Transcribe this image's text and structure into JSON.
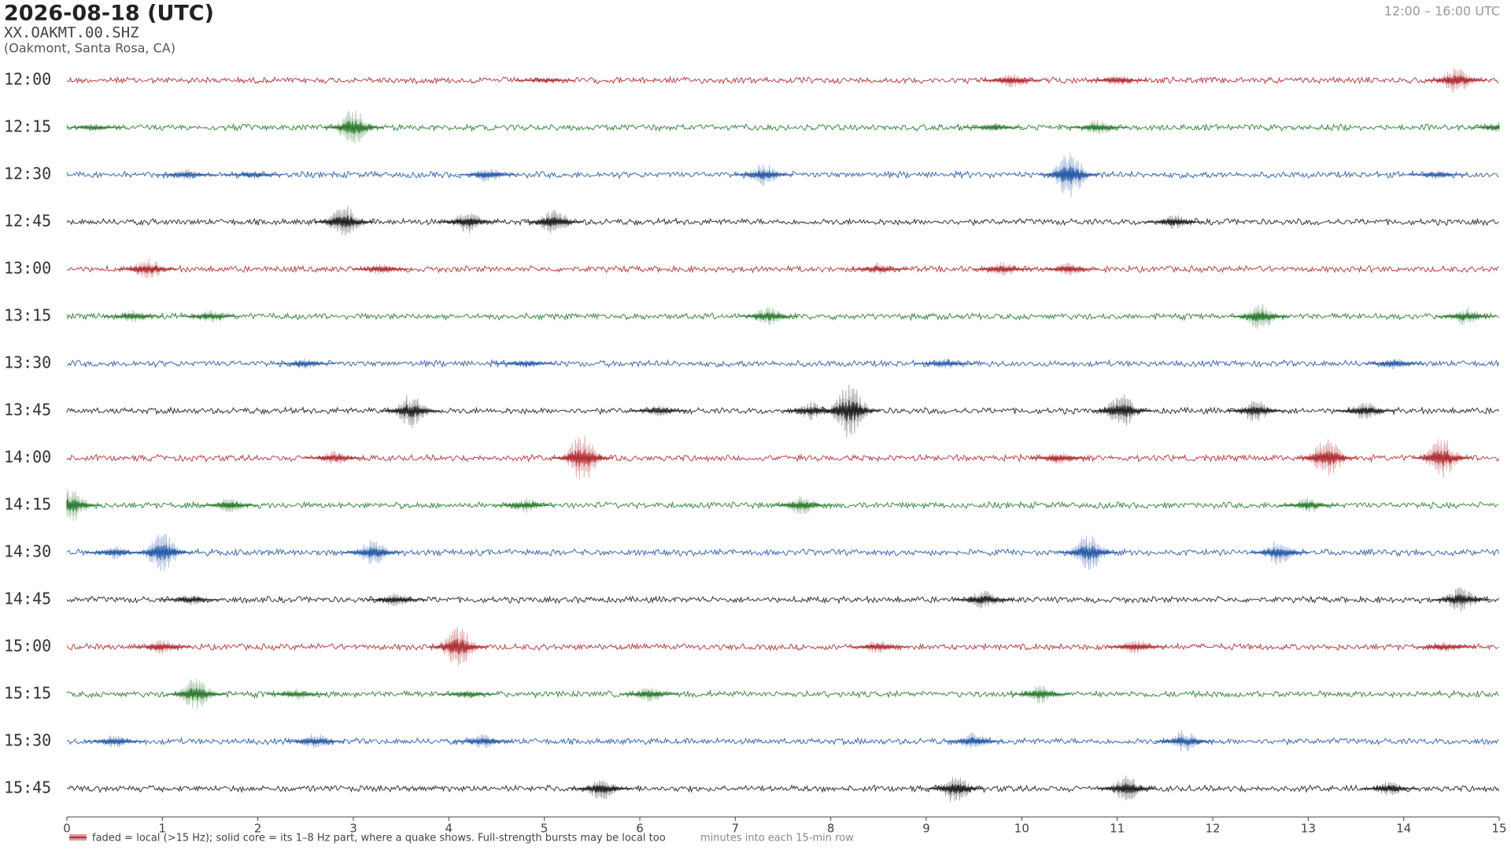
{
  "chart_data": {
    "type": "helicorder",
    "title": "2026-08-18  (UTC)",
    "station": "XX.OAKMT.00.SHZ",
    "location": "(Oakmont, Santa Rosa, CA)",
    "time_range": "12:00 – 16:00 UTC",
    "note": "faded = local (>15 Hz); solid core = its 1–8 Hz part, where a quake shows. Full-strength bursts may be local too",
    "x_label": "minutes into each 15-min row",
    "xlim": [
      0,
      15
    ],
    "xticks": [
      0,
      1,
      2,
      3,
      4,
      5,
      6,
      7,
      8,
      9,
      10,
      11,
      12,
      13,
      14,
      15
    ],
    "series": [
      {
        "name": "12:00",
        "color": "#b03035",
        "bursts": [
          [
            9.9,
            8
          ],
          [
            11,
            6
          ],
          [
            14.55,
            14
          ],
          [
            5,
            3
          ]
        ]
      },
      {
        "name": "12:15",
        "color": "#2e7d32",
        "bursts": [
          [
            3.0,
            20
          ],
          [
            0.3,
            4
          ],
          [
            10.8,
            8
          ],
          [
            9.7,
            5
          ],
          [
            15,
            6
          ]
        ]
      },
      {
        "name": "12:30",
        "color": "#2a5ca8",
        "bursts": [
          [
            1.25,
            6
          ],
          [
            4.4,
            8
          ],
          [
            7.3,
            12
          ],
          [
            10.5,
            24
          ],
          [
            1.95,
            5
          ],
          [
            14.35,
            5
          ]
        ]
      },
      {
        "name": "12:45",
        "color": "#222222",
        "bursts": [
          [
            2.9,
            18
          ],
          [
            5.1,
            14
          ],
          [
            4.2,
            12
          ],
          [
            11.6,
            8
          ]
        ]
      },
      {
        "name": "13:00",
        "color": "#b03035",
        "bursts": [
          [
            0.85,
            12
          ],
          [
            3.3,
            6
          ],
          [
            8.5,
            7
          ],
          [
            9.8,
            8
          ],
          [
            10.5,
            7
          ]
        ]
      },
      {
        "name": "13:15",
        "color": "#2e7d32",
        "bursts": [
          [
            0.7,
            7
          ],
          [
            1.5,
            7
          ],
          [
            7.35,
            10
          ],
          [
            12.5,
            14
          ],
          [
            14.65,
            10
          ]
        ]
      },
      {
        "name": "13:30",
        "color": "#2a5ca8",
        "bursts": [
          [
            2.5,
            6
          ],
          [
            4.8,
            5
          ],
          [
            9.2,
            6
          ],
          [
            13.9,
            6
          ]
        ]
      },
      {
        "name": "13:45",
        "color": "#222222",
        "bursts": [
          [
            3.6,
            18
          ],
          [
            8.2,
            30
          ],
          [
            7.8,
            10
          ],
          [
            11.05,
            18
          ],
          [
            12.45,
            12
          ],
          [
            13.6,
            10
          ],
          [
            6.2,
            6
          ]
        ]
      },
      {
        "name": "14:00",
        "color": "#b03035",
        "bursts": [
          [
            5.4,
            26
          ],
          [
            2.8,
            8
          ],
          [
            10.4,
            8
          ],
          [
            13.2,
            22
          ],
          [
            14.4,
            22
          ]
        ]
      },
      {
        "name": "14:15",
        "color": "#2e7d32",
        "bursts": [
          [
            0.05,
            18
          ],
          [
            1.7,
            8
          ],
          [
            4.8,
            8
          ],
          [
            7.7,
            10
          ],
          [
            13.0,
            8
          ]
        ]
      },
      {
        "name": "14:30",
        "color": "#2a5ca8",
        "bursts": [
          [
            1.0,
            22
          ],
          [
            3.2,
            14
          ],
          [
            10.7,
            20
          ],
          [
            12.7,
            14
          ],
          [
            0.5,
            7
          ]
        ]
      },
      {
        "name": "14:45",
        "color": "#222222",
        "bursts": [
          [
            3.45,
            8
          ],
          [
            9.6,
            10
          ],
          [
            14.6,
            14
          ],
          [
            1.3,
            6
          ]
        ]
      },
      {
        "name": "15:00",
        "color": "#b03035",
        "bursts": [
          [
            4.1,
            22
          ],
          [
            1.0,
            8
          ],
          [
            8.5,
            8
          ],
          [
            11.2,
            8
          ],
          [
            14.45,
            6
          ]
        ]
      },
      {
        "name": "15:15",
        "color": "#2e7d32",
        "bursts": [
          [
            1.35,
            18
          ],
          [
            2.4,
            6
          ],
          [
            6.1,
            8
          ],
          [
            10.2,
            10
          ],
          [
            4.2,
            5
          ]
        ]
      },
      {
        "name": "15:30",
        "color": "#2a5ca8",
        "bursts": [
          [
            0.5,
            7
          ],
          [
            2.6,
            9
          ],
          [
            4.35,
            8
          ],
          [
            9.5,
            10
          ],
          [
            11.7,
            12
          ]
        ]
      },
      {
        "name": "15:45",
        "color": "#222222",
        "bursts": [
          [
            5.6,
            12
          ],
          [
            9.3,
            16
          ],
          [
            11.1,
            14
          ],
          [
            13.85,
            8
          ]
        ]
      }
    ]
  }
}
